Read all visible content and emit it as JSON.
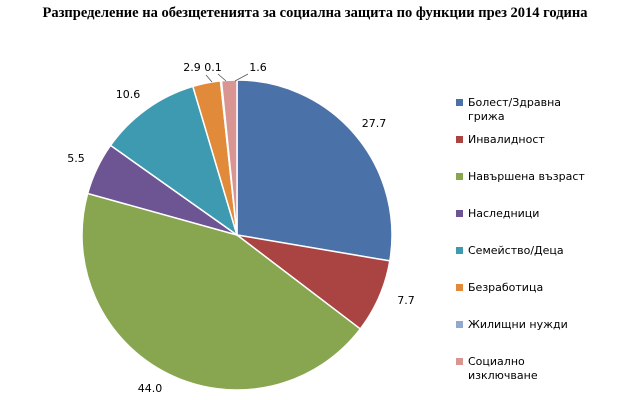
{
  "chart_data": {
    "type": "pie",
    "title": "Разпределение на обезщетенията за социална защита по функции през 2014 година",
    "categories": [
      "Болест/Здравна грижа",
      "Инвалидност",
      "Навършена възраст",
      "Наследници",
      "Семейство/Деца",
      "Безработица",
      "Жилищни нужди",
      "Социално изключване"
    ],
    "values": [
      27.7,
      7.7,
      44.0,
      5.5,
      10.6,
      2.9,
      0.1,
      1.6
    ],
    "value_labels": [
      "27.7",
      "7.7",
      "44.0",
      "5.5",
      "10.6",
      "2.9",
      "0.1",
      "1.6"
    ],
    "colors": [
      "#4A72A8",
      "#A94442",
      "#87A64F",
      "#6D5492",
      "#3E9AB1",
      "#E08A3A",
      "#92A9CF",
      "#D99592"
    ],
    "legend_position": "right"
  }
}
